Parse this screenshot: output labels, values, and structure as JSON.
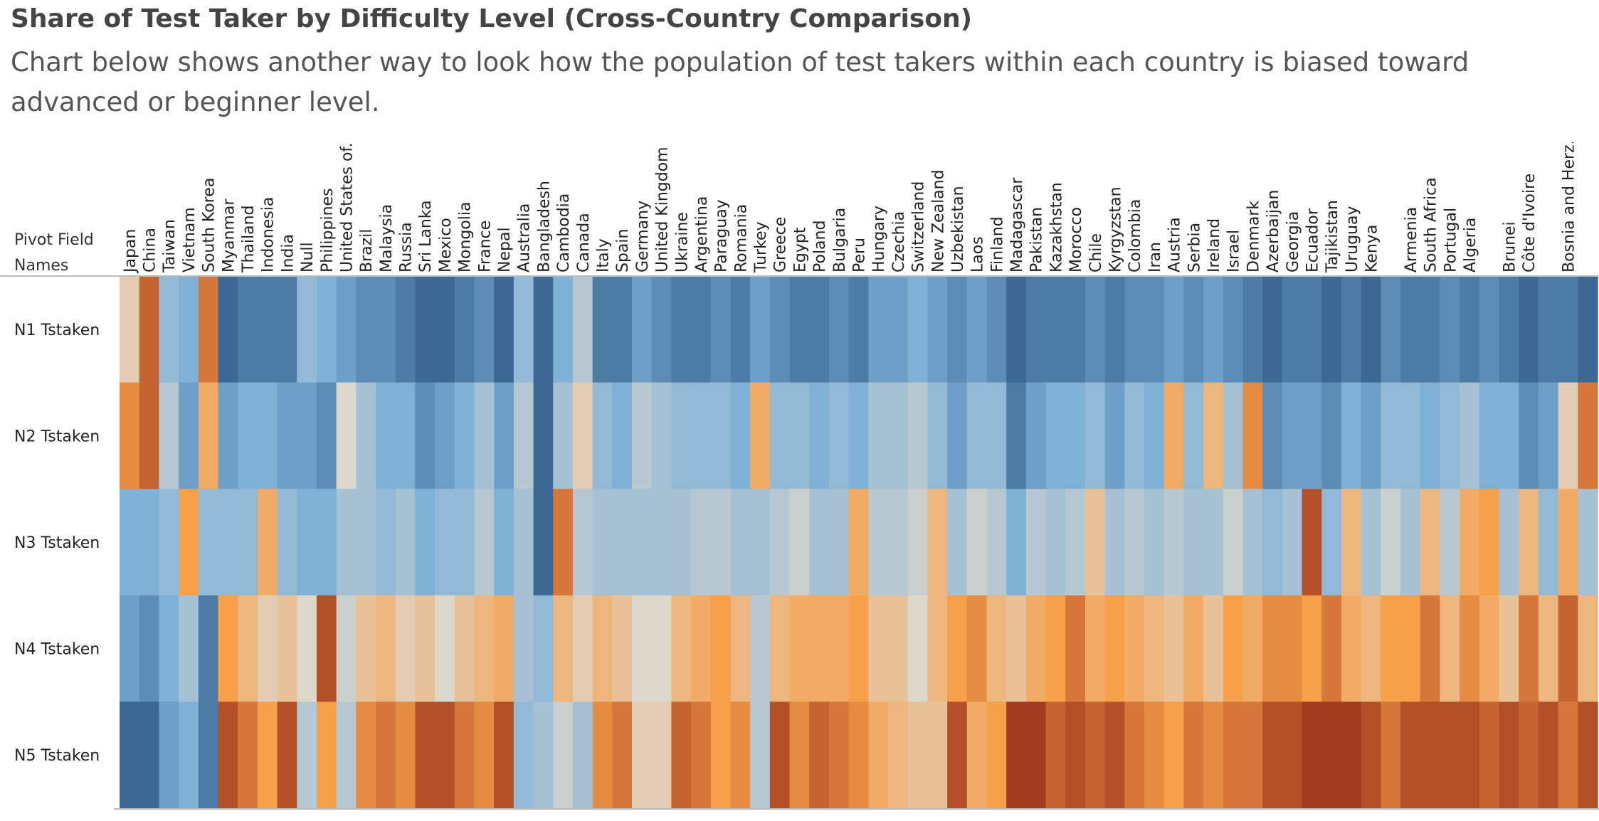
{
  "chart_data": {
    "type": "heatmap",
    "title": "Share of Test Taker by Difficulty Level (Cross-Country Comparison)",
    "subtitle": "Chart below shows another way to look how the population of test takers within each country is biased toward advanced or beginner level.",
    "row_header": "Pivot Field Names",
    "rows": [
      "N1 Tstaken",
      "N2 Tstaken",
      "N3 Tstaken",
      "N4 Tstaken",
      "N5 Tstaken"
    ],
    "categories": [
      "Japan",
      "China",
      "Taiwan",
      "Vietnam",
      "South Korea",
      "Myanmar",
      "Thailand",
      "Indonesia",
      "India",
      "Null",
      "Philippines",
      "United States of..",
      "Brazil",
      "Malaysia",
      "Russia",
      "Sri Lanka",
      "Mexico",
      "Mongolia",
      "France",
      "Nepal",
      "Australia",
      "Bangladesh",
      "Cambodia",
      "Canada",
      "Italy",
      "Spain",
      "Germany",
      "United Kingdom",
      "Ukraine",
      "Argentina",
      "Paraguay",
      "Romania",
      "Turkey",
      "Greece",
      "Egypt",
      "Poland",
      "Bulgaria",
      "Peru",
      "Hungary",
      "Czechia",
      "Switzerland",
      "New Zealand",
      "Uzbekistan",
      "Laos",
      "Finland",
      "Madagascar",
      "Pakistan",
      "Kazakhstan",
      "Morocco",
      "Chile",
      "Kyrgyzstan",
      "Colombia",
      "Iran",
      "Austria",
      "Serbia",
      "Ireland",
      "Israel",
      "Denmark",
      "Azerbaijan",
      "Georgia",
      "Ecuador",
      "Tajikistan",
      "Uruguay",
      "Kenya",
      null,
      "Armenia",
      "South Africa",
      "Portugal",
      "Algeria",
      null,
      "Brunei",
      "Côte d'Ivoire",
      null,
      "Bosnia and Herz..",
      null
    ],
    "values": [
      [
        0.1,
        0.8,
        -0.4,
        -0.5,
        0.7,
        -0.9,
        -0.8,
        -0.8,
        -0.8,
        -0.4,
        -0.5,
        -0.6,
        -0.7,
        -0.7,
        -0.8,
        -0.9,
        -0.9,
        -0.8,
        -0.7,
        -0.9,
        -0.4,
        -0.9,
        -0.5,
        -0.2,
        -0.8,
        -0.8,
        -0.6,
        -0.7,
        -0.8,
        -0.8,
        -0.7,
        -0.8,
        -0.6,
        -0.7,
        -0.8,
        -0.8,
        -0.7,
        -0.8,
        -0.6,
        -0.6,
        -0.5,
        -0.6,
        -0.7,
        -0.6,
        -0.7,
        -0.9,
        -0.8,
        -0.8,
        -0.8,
        -0.7,
        -0.8,
        -0.7,
        -0.7,
        -0.6,
        -0.7,
        -0.6,
        -0.7,
        -0.8,
        -0.9,
        -0.8,
        -0.8,
        -0.9,
        -0.8,
        -0.9,
        -0.7,
        -0.8,
        -0.8,
        -0.7,
        -0.8,
        -0.7,
        -0.8,
        -0.9,
        -0.8,
        -0.8,
        -0.9
      ],
      [
        0.6,
        0.8,
        -0.2,
        -0.6,
        0.4,
        -0.6,
        -0.5,
        -0.5,
        -0.6,
        -0.6,
        -0.7,
        0.0,
        -0.3,
        -0.5,
        -0.5,
        -0.7,
        -0.6,
        -0.5,
        -0.3,
        -0.6,
        -0.2,
        -0.9,
        -0.3,
        0.1,
        -0.4,
        -0.5,
        -0.2,
        -0.3,
        -0.4,
        -0.4,
        -0.4,
        -0.5,
        0.4,
        -0.4,
        -0.4,
        -0.5,
        -0.4,
        -0.5,
        -0.3,
        -0.3,
        -0.2,
        -0.4,
        -0.6,
        -0.4,
        -0.4,
        -0.8,
        -0.6,
        -0.5,
        -0.5,
        -0.4,
        -0.6,
        -0.4,
        -0.5,
        0.4,
        -0.4,
        0.3,
        -0.3,
        0.6,
        -0.7,
        -0.6,
        -0.6,
        -0.7,
        -0.5,
        -0.6,
        -0.4,
        -0.4,
        -0.5,
        -0.4,
        -0.3,
        -0.5,
        -0.5,
        -0.7,
        -0.6,
        0.1,
        0.7
      ],
      [
        -0.5,
        -0.5,
        -0.4,
        0.5,
        -0.4,
        -0.4,
        -0.4,
        0.4,
        -0.4,
        -0.5,
        -0.5,
        -0.3,
        -0.3,
        -0.4,
        -0.3,
        -0.5,
        -0.4,
        -0.4,
        -0.2,
        -0.5,
        -0.3,
        -0.9,
        0.7,
        -0.2,
        -0.3,
        -0.3,
        -0.3,
        -0.3,
        -0.3,
        -0.2,
        -0.2,
        -0.3,
        -0.3,
        -0.2,
        -0.1,
        -0.3,
        -0.3,
        0.4,
        -0.2,
        -0.2,
        -0.1,
        0.3,
        -0.3,
        -0.1,
        -0.2,
        -0.5,
        -0.2,
        -0.3,
        -0.2,
        0.2,
        -0.3,
        -0.2,
        -0.3,
        -0.2,
        -0.3,
        -0.3,
        -0.1,
        -0.3,
        -0.4,
        -0.3,
        0.9,
        -0.4,
        0.3,
        -0.3,
        -0.1,
        -0.3,
        0.3,
        -0.2,
        0.4,
        0.5,
        -0.3,
        0.3,
        -0.4,
        0.4,
        -0.3
      ],
      [
        -0.6,
        -0.7,
        -0.5,
        -0.3,
        -0.8,
        0.5,
        0.3,
        0.1,
        0.2,
        0.0,
        0.9,
        -0.1,
        0.2,
        0.3,
        0.1,
        0.2,
        0.0,
        0.2,
        0.3,
        0.4,
        -0.3,
        -0.4,
        0.3,
        0.1,
        0.3,
        0.2,
        0.0,
        0.0,
        0.3,
        0.4,
        0.5,
        0.3,
        -0.2,
        0.3,
        0.4,
        0.4,
        0.4,
        0.5,
        0.2,
        0.2,
        0.0,
        0.3,
        0.5,
        0.6,
        0.3,
        0.2,
        0.4,
        0.5,
        0.7,
        0.4,
        0.5,
        0.4,
        0.3,
        0.2,
        0.4,
        0.2,
        0.5,
        0.4,
        0.6,
        0.6,
        0.5,
        0.7,
        0.4,
        0.3,
        0.5,
        0.5,
        0.7,
        0.3,
        0.6,
        0.4,
        0.2,
        0.7,
        0.3,
        0.8,
        0.3
      ],
      [
        -0.9,
        -0.9,
        -0.6,
        -0.5,
        -0.8,
        0.9,
        0.7,
        0.5,
        0.9,
        -0.2,
        0.5,
        -0.2,
        0.6,
        0.7,
        0.6,
        0.9,
        0.9,
        0.7,
        0.6,
        0.9,
        -0.4,
        -0.3,
        -0.1,
        -0.3,
        0.6,
        0.7,
        0.1,
        0.1,
        0.8,
        0.7,
        0.5,
        0.6,
        -0.2,
        0.9,
        0.6,
        0.8,
        0.7,
        0.6,
        0.4,
        0.3,
        0.2,
        0.2,
        0.9,
        0.4,
        0.5,
        1.0,
        1.0,
        0.8,
        0.9,
        0.8,
        0.9,
        0.7,
        0.6,
        0.5,
        0.7,
        0.6,
        0.7,
        0.7,
        0.9,
        0.9,
        1.0,
        1.0,
        1.0,
        0.9,
        0.7,
        0.9,
        0.9,
        0.9,
        0.9,
        0.8,
        0.9,
        0.8,
        0.9,
        0.7,
        0.9
      ]
    ],
    "color_domain": [
      -1,
      1
    ],
    "colors": [
      "#2a5783",
      "#7fb1d7",
      "#ddd8cc",
      "#f7a04a",
      "#a33c1f"
    ]
  }
}
